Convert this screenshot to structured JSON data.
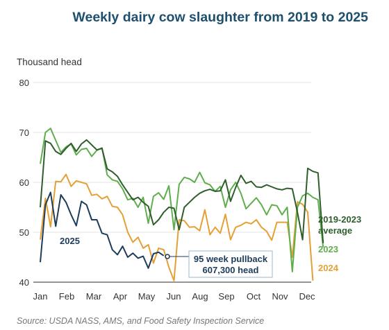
{
  "chart_data": {
    "type": "line",
    "title": "Weekly dairy cow slaughter from 2019 to 2025",
    "ylabel": "Thousand head",
    "xlabel": "",
    "ylim": [
      40,
      80
    ],
    "yticks": [
      "40",
      "50",
      "60",
      "70",
      "80"
    ],
    "xticks": [
      "Jan",
      "Feb",
      "Mar",
      "Apr",
      "May",
      "Jun",
      "Aug",
      "Sep",
      "Oct",
      "Nov",
      "Dec"
    ],
    "grid": true,
    "source": "Source: USDA NASS, AMS, and Food Safety Inspection Service",
    "annotation": {
      "line1": "95 week pullback",
      "line2": "607,300 head"
    },
    "series": [
      {
        "name": "2019-2023 average",
        "color": "#2e5e2b",
        "week_start": 1,
        "values": [
          55,
          68.3,
          67.8,
          66.2,
          65.6,
          66.8,
          67.8,
          66.2,
          67.7,
          68.5,
          67.5,
          66.5,
          66.8,
          62.7,
          62.1,
          61.2,
          59.5,
          58,
          56.5,
          57,
          56,
          55.2,
          51.5,
          52.5,
          54,
          55,
          54.8,
          50.5,
          55,
          56,
          57,
          57.8,
          58.3,
          58.6,
          58.2,
          58.3,
          60.5,
          56.2,
          59,
          61.4,
          59.8,
          60.2,
          59.1,
          59,
          59.5,
          59.1,
          58.7,
          58.5,
          58.8,
          58.7,
          54,
          48.5,
          62.8,
          62.2,
          61.9,
          47.8
        ]
      },
      {
        "name": "2023",
        "color": "#5fae4e",
        "week_start": 1,
        "values": [
          63.7,
          70,
          70.8,
          68.4,
          66,
          67.1,
          67.7,
          65.5,
          66.6,
          66.8,
          65.2,
          66.4,
          66.9,
          61.5,
          60.5,
          60.2,
          58.7,
          56.5,
          56.8,
          55,
          57,
          51.8,
          57.2,
          57.9,
          56.6,
          59.3,
          50.5,
          59.6,
          61,
          60.7,
          60,
          62,
          59.9,
          59.5,
          58.2,
          59.2,
          55,
          58.5,
          60,
          57.8,
          54.7,
          55.8,
          56.9,
          55.5,
          53.5,
          55.5,
          55.3,
          53.5,
          55,
          42.1,
          55,
          57.3,
          57.8,
          57,
          56.5,
          47
        ]
      },
      {
        "name": "2024",
        "color": "#e4a035",
        "week_start": 1,
        "values": [
          48.5,
          56.8,
          51.1,
          60.2,
          60.1,
          61.6,
          59.2,
          60.3,
          60,
          59.7,
          57.4,
          57.6,
          56.7,
          57.2,
          55.2,
          55,
          53.5,
          50,
          48,
          49,
          46.8,
          47.5,
          43.8,
          46.8,
          46.5,
          43,
          40.3,
          52.5,
          52.3,
          51,
          51.1,
          50.3,
          54.5,
          49.5,
          51,
          49.8,
          53.6,
          48.5,
          51,
          51.4,
          52,
          51.7,
          52.5,
          51,
          50.2,
          48.4,
          52,
          52,
          52,
          45,
          56.1,
          55.6,
          54,
          40.3
        ]
      },
      {
        "name": "2025",
        "color": "#1d3b5a",
        "week_start": 1,
        "values": [
          44,
          55.5,
          58,
          51.2,
          57.5,
          56,
          53.5,
          51.3,
          56.2,
          55.5,
          52.5,
          52.5,
          49.8,
          49.5,
          46.5,
          45.5,
          47.2,
          45,
          45.8,
          44.8,
          45.2,
          42.8,
          45.7,
          46,
          45.3
        ]
      }
    ]
  }
}
